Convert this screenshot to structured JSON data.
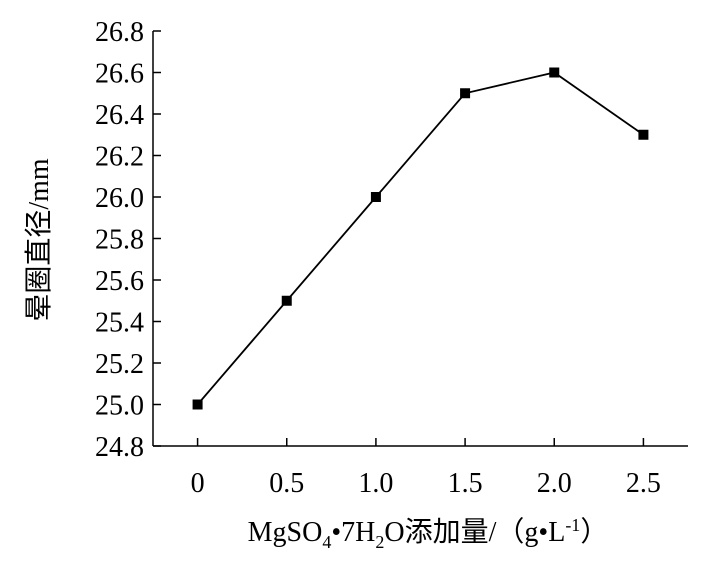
{
  "chart_data": {
    "type": "line",
    "x": [
      0,
      0.5,
      1.0,
      1.5,
      2.0,
      2.5
    ],
    "x_tick_labels": [
      "0",
      "0.5",
      "1.0",
      "1.5",
      "2.0",
      "2.5"
    ],
    "xlim": [
      -0.25,
      2.75
    ],
    "ylim": [
      24.8,
      26.8
    ],
    "y_ticks": [
      24.8,
      25.0,
      25.2,
      25.4,
      25.6,
      25.8,
      26.0,
      26.2,
      26.4,
      26.6,
      26.8
    ],
    "y_tick_labels": [
      "24.8",
      "25.0",
      "25.2",
      "25.4",
      "25.6",
      "25.8",
      "26.0",
      "26.2",
      "26.4",
      "26.6",
      "26.8"
    ],
    "series": [
      {
        "values": [
          25.0,
          25.5,
          26.0,
          26.5,
          26.6,
          26.3
        ],
        "color": "#000000",
        "marker": "square"
      }
    ],
    "ylabel": "晕圈直径/mm",
    "xlabel": {
      "p1": "MgSO",
      "p1_sub": "4",
      "p2": "•7H",
      "p2_sub": "2",
      "p3": "O添加量/（g•L",
      "p3_sup": "-1",
      "p4": "）"
    },
    "grid": false,
    "legend": "none"
  }
}
